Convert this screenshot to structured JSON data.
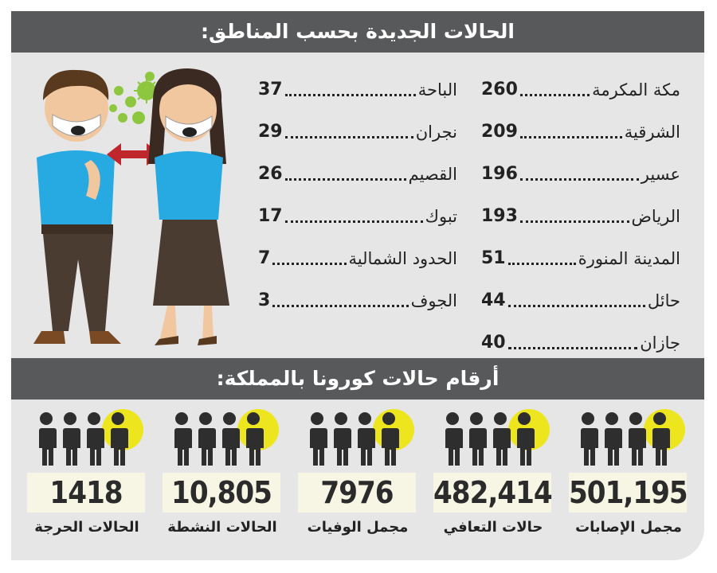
{
  "header_regions": "الحالات الجديدة بحسب المناطق:",
  "header_kingdom": "أرقام حالات كورونا بالمملكة:",
  "regions_col_right": [
    {
      "name": "مكة المكرمة",
      "value": "260"
    },
    {
      "name": "الشرقية",
      "value": "209"
    },
    {
      "name": "عسير",
      "value": "196"
    },
    {
      "name": "الرياض",
      "value": "193"
    },
    {
      "name": "المدينة المنورة",
      "value": "51"
    },
    {
      "name": "حائل",
      "value": "44"
    },
    {
      "name": "جازان",
      "value": "40"
    }
  ],
  "regions_col_left": [
    {
      "name": "الباحة",
      "value": "37"
    },
    {
      "name": "نجران",
      "value": "29"
    },
    {
      "name": "القصيم",
      "value": "26"
    },
    {
      "name": "تبوك",
      "value": "17"
    },
    {
      "name": "الحدود الشمالية",
      "value": "7"
    },
    {
      "name": "الجوف",
      "value": "3"
    }
  ],
  "stats": [
    {
      "label": "مجمل الإصابات",
      "value": "501,195"
    },
    {
      "label": "حالات التعافي",
      "value": "482,414"
    },
    {
      "label": "مجمل الوفيات",
      "value": "7976"
    },
    {
      "label": "الحالات النشطة",
      "value": "10,805"
    },
    {
      "label": "الحالات الحرجة",
      "value": "1418"
    }
  ],
  "colors": {
    "header_bg": "#58595b",
    "card_bg": "#e6e6e6",
    "accent_yellow": "#ede61f",
    "number_bg": "#f7f6e5",
    "arrow_red": "#c0272d",
    "shirt_blue": "#27a9e1",
    "virus_green": "#8dc63f"
  },
  "icons": [
    "people-group-icon",
    "virus-icon",
    "double-arrow-icon",
    "masked-person-illustration"
  ]
}
